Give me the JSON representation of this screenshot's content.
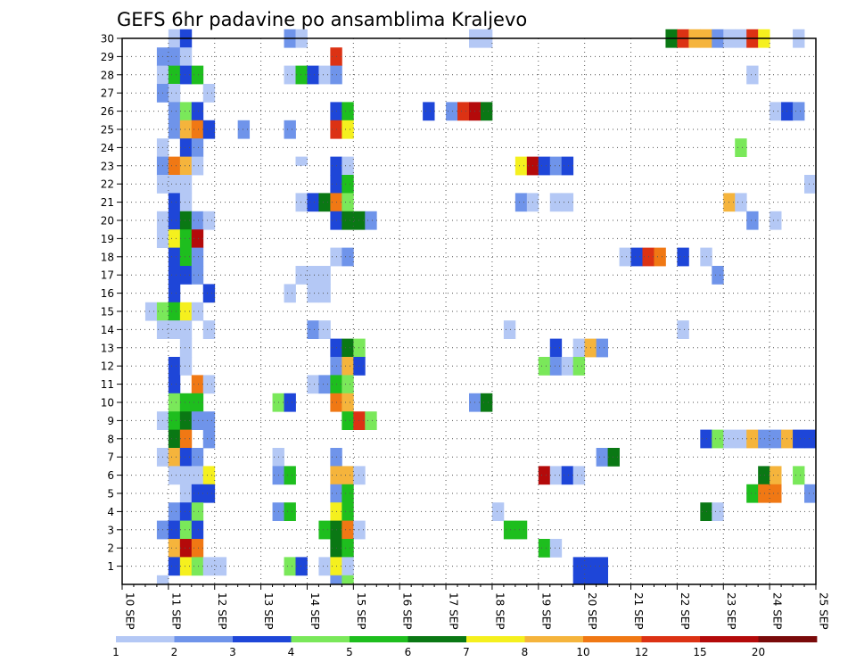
{
  "chart_data": {
    "type": "heatmap",
    "title": "GEFS 6hr padavine po ansamblima Kraljevo",
    "xlabel": "",
    "ylabel": "",
    "x_ticks": [
      "10 SEP",
      "11 SEP",
      "12 SEP",
      "13 SEP",
      "14 SEP",
      "15 SEP",
      "16 SEP",
      "17 SEP",
      "18 SEP",
      "19 SEP",
      "20 SEP",
      "21 SEP",
      "22 SEP",
      "23 SEP",
      "24 SEP",
      "25 SEP"
    ],
    "y_ticks": [
      "1",
      "2",
      "3",
      "4",
      "5",
      "6",
      "7",
      "8",
      "9",
      "10",
      "11",
      "12",
      "13",
      "14",
      "15",
      "16",
      "17",
      "18",
      "19",
      "20",
      "21",
      "22",
      "23",
      "24",
      "25",
      "26",
      "27",
      "28",
      "29",
      "30"
    ],
    "x_unit": "6h step from 10 SEP 00Z",
    "x_range": [
      0,
      60
    ],
    "y_range": [
      0,
      30
    ],
    "grid": true,
    "colorbar": {
      "labels": [
        "1",
        "2",
        "3",
        "4",
        "5",
        "6",
        "7",
        "8",
        "10",
        "12",
        "15",
        "20"
      ],
      "colors": [
        "#b4c8f5",
        "#6f94ea",
        "#1e46d8",
        "#7ae85a",
        "#1ebe1e",
        "#0a7814",
        "#f5f01e",
        "#f5b43c",
        "#f07814",
        "#dc3214",
        "#b40a0a",
        "#7a0a0a"
      ]
    },
    "cells": [
      {
        "row": 30,
        "c": [
          [
            5,
            1
          ],
          [
            6,
            3
          ],
          [
            15,
            2
          ],
          [
            16,
            1
          ],
          [
            31,
            1
          ],
          [
            32,
            1
          ],
          [
            48,
            6
          ],
          [
            49,
            10
          ],
          [
            50,
            8
          ],
          [
            51,
            8
          ],
          [
            52,
            2
          ],
          [
            53,
            1
          ],
          [
            54,
            1
          ],
          [
            55,
            10
          ],
          [
            56,
            7
          ],
          [
            59,
            1
          ]
        ]
      },
      {
        "row": 29,
        "c": [
          [
            4,
            2
          ],
          [
            5,
            2
          ],
          [
            6,
            1
          ],
          [
            19,
            10
          ]
        ]
      },
      {
        "row": 28,
        "c": [
          [
            4,
            1
          ],
          [
            5,
            5
          ],
          [
            6,
            3
          ],
          [
            7,
            5
          ],
          [
            15,
            1
          ],
          [
            16,
            5
          ],
          [
            17,
            3
          ],
          [
            18,
            1
          ],
          [
            19,
            2
          ],
          [
            55,
            1
          ]
        ]
      },
      {
        "row": 27,
        "c": [
          [
            4,
            2
          ],
          [
            5,
            1
          ],
          [
            8,
            1
          ]
        ]
      },
      {
        "row": 26,
        "c": [
          [
            5,
            2
          ],
          [
            6,
            4
          ],
          [
            7,
            3
          ],
          [
            19,
            3
          ],
          [
            20,
            5
          ],
          [
            27,
            3
          ],
          [
            29,
            2
          ],
          [
            30,
            10
          ],
          [
            31,
            11
          ],
          [
            32,
            6
          ],
          [
            57,
            1
          ],
          [
            58,
            3
          ],
          [
            59,
            2
          ]
        ]
      },
      {
        "row": 25,
        "c": [
          [
            5,
            2
          ],
          [
            6,
            8
          ],
          [
            7,
            9
          ],
          [
            8,
            3
          ],
          [
            11,
            2
          ],
          [
            15,
            2
          ],
          [
            19,
            10
          ],
          [
            20,
            7
          ]
        ]
      },
      {
        "row": 24,
        "c": [
          [
            4,
            1
          ],
          [
            6,
            3
          ],
          [
            7,
            2
          ],
          [
            54,
            4
          ]
        ]
      },
      {
        "row": 23,
        "c": [
          [
            4,
            2
          ],
          [
            5,
            9
          ],
          [
            6,
            8
          ],
          [
            7,
            1
          ],
          [
            19,
            3
          ],
          [
            20,
            1
          ],
          [
            35,
            7
          ],
          [
            36,
            11
          ],
          [
            37,
            3
          ],
          [
            38,
            2
          ],
          [
            39,
            3
          ]
        ]
      },
      {
        "row": 22,
        "c": [
          [
            4,
            1
          ],
          [
            5,
            1
          ],
          [
            6,
            1
          ],
          [
            19,
            3
          ],
          [
            20,
            5
          ],
          [
            60,
            1
          ]
        ]
      },
      {
        "row": 21,
        "c": [
          [
            5,
            3
          ],
          [
            6,
            1
          ],
          [
            16,
            1
          ],
          [
            17,
            3
          ],
          [
            18,
            6
          ],
          [
            19,
            9
          ],
          [
            20,
            4
          ],
          [
            35,
            2
          ],
          [
            36,
            1
          ],
          [
            38,
            1
          ],
          [
            39,
            1
          ],
          [
            53,
            8
          ],
          [
            54,
            1
          ]
        ]
      },
      {
        "row": 20,
        "c": [
          [
            4,
            1
          ],
          [
            5,
            3
          ],
          [
            6,
            6
          ],
          [
            7,
            2
          ],
          [
            8,
            1
          ],
          [
            19,
            3
          ],
          [
            20,
            6
          ],
          [
            21,
            6
          ],
          [
            22,
            2
          ],
          [
            55,
            2
          ],
          [
            57,
            1
          ]
        ]
      },
      {
        "row": 19,
        "c": [
          [
            4,
            1
          ],
          [
            5,
            7
          ],
          [
            6,
            5
          ],
          [
            7,
            11
          ]
        ]
      },
      {
        "row": 18,
        "c": [
          [
            5,
            3
          ],
          [
            6,
            5
          ],
          [
            7,
            2
          ],
          [
            19,
            1
          ],
          [
            20,
            2
          ],
          [
            44,
            1
          ],
          [
            45,
            3
          ],
          [
            46,
            10
          ],
          [
            47,
            9
          ],
          [
            49,
            3
          ],
          [
            51,
            1
          ]
        ]
      },
      {
        "row": 17,
        "c": [
          [
            5,
            3
          ],
          [
            6,
            3
          ],
          [
            7,
            2
          ],
          [
            16,
            1
          ],
          [
            17,
            1
          ],
          [
            18,
            1
          ],
          [
            52,
            2
          ]
        ]
      },
      {
        "row": 16,
        "c": [
          [
            5,
            3
          ],
          [
            8,
            3
          ],
          [
            15,
            1
          ],
          [
            17,
            1
          ],
          [
            18,
            1
          ]
        ]
      },
      {
        "row": 15,
        "c": [
          [
            3,
            1
          ],
          [
            4,
            4
          ],
          [
            5,
            5
          ],
          [
            6,
            7
          ],
          [
            7,
            1
          ]
        ]
      },
      {
        "row": 14,
        "c": [
          [
            4,
            1
          ],
          [
            5,
            1
          ],
          [
            6,
            1
          ],
          [
            8,
            1
          ],
          [
            17,
            2
          ],
          [
            18,
            1
          ],
          [
            34,
            1
          ],
          [
            49,
            1
          ]
        ]
      },
      {
        "row": 13,
        "c": [
          [
            6,
            1
          ],
          [
            19,
            3
          ],
          [
            20,
            6
          ],
          [
            21,
            4
          ],
          [
            38,
            3
          ],
          [
            40,
            1
          ],
          [
            41,
            8
          ],
          [
            42,
            2
          ]
        ]
      },
      {
        "row": 12,
        "c": [
          [
            5,
            3
          ],
          [
            6,
            1
          ],
          [
            19,
            2
          ],
          [
            20,
            8
          ],
          [
            21,
            3
          ],
          [
            37,
            4
          ],
          [
            38,
            2
          ],
          [
            39,
            1
          ],
          [
            40,
            4
          ]
        ]
      },
      {
        "row": 11,
        "c": [
          [
            5,
            3
          ],
          [
            7,
            9
          ],
          [
            8,
            1
          ],
          [
            17,
            1
          ],
          [
            18,
            2
          ],
          [
            19,
            5
          ],
          [
            20,
            4
          ]
        ]
      },
      {
        "row": 10,
        "c": [
          [
            5,
            4
          ],
          [
            6,
            5
          ],
          [
            7,
            5
          ],
          [
            14,
            4
          ],
          [
            15,
            3
          ],
          [
            19,
            9
          ],
          [
            20,
            8
          ],
          [
            31,
            2
          ],
          [
            32,
            6
          ]
        ]
      },
      {
        "row": 9,
        "c": [
          [
            4,
            1
          ],
          [
            5,
            5
          ],
          [
            6,
            6
          ],
          [
            7,
            2
          ],
          [
            8,
            2
          ],
          [
            20,
            5
          ],
          [
            21,
            10
          ],
          [
            22,
            4
          ]
        ]
      },
      {
        "row": 8,
        "c": [
          [
            5,
            6
          ],
          [
            6,
            9
          ],
          [
            8,
            2
          ],
          [
            51,
            3
          ],
          [
            52,
            4
          ],
          [
            53,
            1
          ],
          [
            54,
            1
          ],
          [
            55,
            8
          ],
          [
            56,
            2
          ],
          [
            57,
            2
          ],
          [
            58,
            8
          ],
          [
            59,
            3
          ],
          [
            60,
            3
          ]
        ]
      },
      {
        "row": 7,
        "c": [
          [
            4,
            1
          ],
          [
            5,
            8
          ],
          [
            6,
            3
          ],
          [
            7,
            2
          ],
          [
            14,
            1
          ],
          [
            19,
            2
          ],
          [
            42,
            2
          ],
          [
            43,
            6
          ]
        ]
      },
      {
        "row": 6,
        "c": [
          [
            5,
            1
          ],
          [
            6,
            1
          ],
          [
            7,
            1
          ],
          [
            8,
            7
          ],
          [
            14,
            2
          ],
          [
            15,
            5
          ],
          [
            19,
            8
          ],
          [
            20,
            8
          ],
          [
            21,
            1
          ],
          [
            37,
            11
          ],
          [
            38,
            1
          ],
          [
            39,
            3
          ],
          [
            40,
            1
          ],
          [
            56,
            6
          ],
          [
            57,
            8
          ],
          [
            59,
            4
          ]
        ]
      },
      {
        "row": 5,
        "c": [
          [
            6,
            1
          ],
          [
            7,
            3
          ],
          [
            8,
            3
          ],
          [
            19,
            2
          ],
          [
            20,
            5
          ],
          [
            55,
            5
          ],
          [
            56,
            9
          ],
          [
            57,
            9
          ],
          [
            60,
            2
          ]
        ]
      },
      {
        "row": 4,
        "c": [
          [
            5,
            2
          ],
          [
            6,
            3
          ],
          [
            7,
            4
          ],
          [
            14,
            2
          ],
          [
            15,
            5
          ],
          [
            19,
            7
          ],
          [
            20,
            5
          ],
          [
            33,
            1
          ],
          [
            51,
            6
          ],
          [
            52,
            1
          ]
        ]
      },
      {
        "row": 3,
        "c": [
          [
            4,
            2
          ],
          [
            5,
            3
          ],
          [
            6,
            4
          ],
          [
            7,
            3
          ],
          [
            18,
            5
          ],
          [
            19,
            6
          ],
          [
            20,
            9
          ],
          [
            21,
            1
          ],
          [
            34,
            5
          ],
          [
            35,
            5
          ]
        ]
      },
      {
        "row": 2,
        "c": [
          [
            5,
            8
          ],
          [
            6,
            11
          ],
          [
            7,
            9
          ],
          [
            19,
            6
          ],
          [
            20,
            5
          ],
          [
            37,
            5
          ],
          [
            38,
            1
          ]
        ]
      },
      {
        "row": 1,
        "c": [
          [
            5,
            3
          ],
          [
            6,
            7
          ],
          [
            7,
            4
          ],
          [
            8,
            1
          ],
          [
            9,
            1
          ],
          [
            15,
            4
          ],
          [
            16,
            3
          ],
          [
            18,
            1
          ],
          [
            19,
            7
          ],
          [
            20,
            1
          ],
          [
            40,
            3
          ],
          [
            41,
            3
          ],
          [
            42,
            3
          ]
        ]
      }
    ],
    "extra_cells": [
      [
        4,
        0,
        1
      ],
      [
        19,
        0,
        2
      ],
      [
        20,
        0,
        4
      ],
      [
        40,
        0,
        3
      ],
      [
        41,
        0,
        3
      ],
      [
        42,
        0,
        3
      ],
      [
        16,
        23,
        1
      ]
    ]
  }
}
